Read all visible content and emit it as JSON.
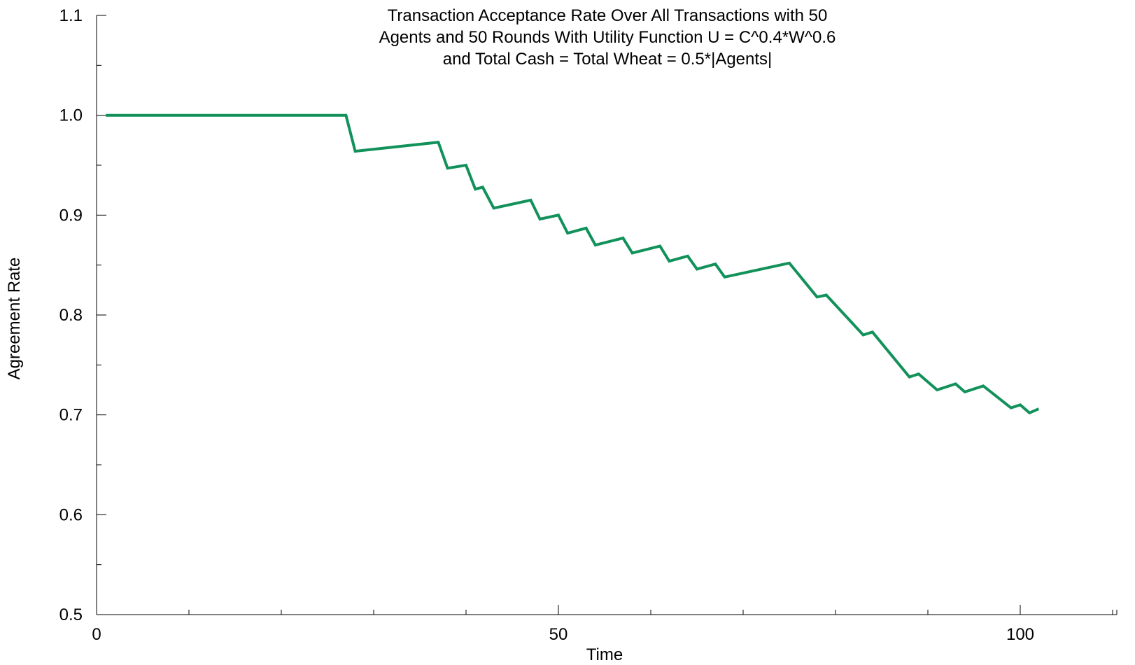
{
  "chart_data": {
    "type": "line",
    "title_lines": [
      "Transaction Acceptance Rate Over All Transactions with 50",
      "Agents and 50 Rounds With Utility Function U = C^0.4*W^0.6",
      "and Total Cash = Total Wheat = 0.5*|Agents|"
    ],
    "xlabel": "Time",
    "ylabel": "Agreement Rate",
    "xlim": [
      0,
      111
    ],
    "ylim": [
      0.5,
      1.1
    ],
    "x_ticks": [
      0,
      50,
      100
    ],
    "x_tick_labels": [
      "0",
      "50",
      "100"
    ],
    "y_ticks": [
      0.5,
      0.6,
      0.7,
      0.8,
      0.9,
      1.0,
      1.1
    ],
    "y_tick_labels": [
      "0.5",
      "0.6",
      "0.7",
      "0.8",
      "0.9",
      "1.0",
      "1.1"
    ],
    "grid": false,
    "legend": "none",
    "line_color": "#12915a",
    "series": [
      {
        "x": [
          1,
          27,
          28,
          37,
          38,
          40,
          41,
          41.8,
          43,
          47,
          48,
          50,
          51,
          53,
          54,
          57,
          58,
          61,
          62,
          64,
          65,
          67,
          68,
          75,
          78,
          79,
          83,
          84,
          88,
          89,
          91,
          93,
          94,
          96,
          99,
          100,
          101,
          102
        ],
        "y": [
          1.0,
          1.0,
          0.964,
          0.973,
          0.947,
          0.95,
          0.926,
          0.928,
          0.907,
          0.915,
          0.896,
          0.9,
          0.882,
          0.887,
          0.87,
          0.877,
          0.862,
          0.869,
          0.854,
          0.859,
          0.846,
          0.851,
          0.838,
          0.852,
          0.818,
          0.82,
          0.78,
          0.783,
          0.738,
          0.741,
          0.725,
          0.731,
          0.723,
          0.729,
          0.707,
          0.71,
          0.702,
          0.706
        ]
      }
    ]
  }
}
